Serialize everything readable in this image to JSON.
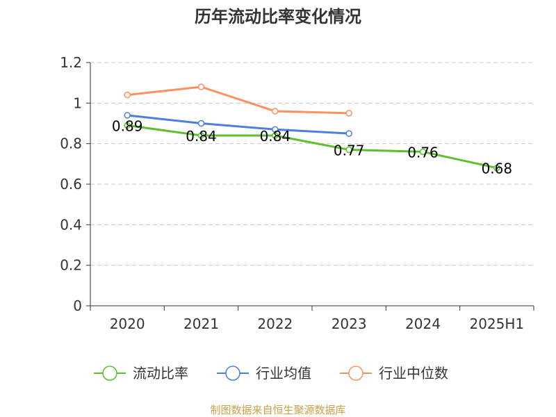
{
  "chart_data": {
    "type": "line",
    "title": "历年流动比率变化情况",
    "categories": [
      "2020",
      "2021",
      "2022",
      "2023",
      "2024",
      "2025H1"
    ],
    "ylim": [
      0,
      1.2
    ],
    "yticks": [
      "0",
      "0.2",
      "0.4",
      "0.6",
      "0.8",
      "1",
      "1.2"
    ],
    "grid": true,
    "legend_position": "bottom",
    "series": [
      {
        "name": "流动比率",
        "color": "#5cc02a",
        "values": [
          0.89,
          0.84,
          0.84,
          0.77,
          0.76,
          0.68
        ],
        "labels": [
          "0.89",
          "0.84",
          "0.84",
          "0.77",
          "0.76",
          "0.68"
        ]
      },
      {
        "name": "行业均值",
        "color": "#4b7fdd",
        "values": [
          0.94,
          0.9,
          0.87,
          0.85,
          null,
          null
        ]
      },
      {
        "name": "行业中位数",
        "color": "#ff9160",
        "values": [
          1.04,
          1.08,
          0.96,
          0.95,
          null,
          null
        ]
      }
    ]
  },
  "source_text": "制图数据来自恒生聚源数据库"
}
